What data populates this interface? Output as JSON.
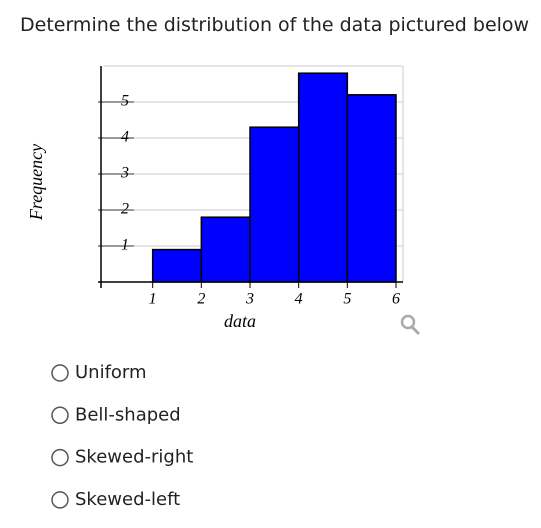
{
  "question": "Determine the distribution of the data pictured below",
  "chart_data": {
    "type": "histogram",
    "xlabel": "data",
    "ylabel": "Frequency",
    "bins": [
      1,
      2,
      3,
      4,
      5,
      6
    ],
    "values": [
      0.9,
      1.8,
      4.3,
      5.8,
      5.2
    ],
    "color": "#0000ff",
    "xlim": [
      0,
      6
    ],
    "ylim": [
      0,
      6
    ],
    "xticks": [
      1,
      2,
      3,
      4,
      5,
      6
    ],
    "yticks": [
      1,
      2,
      3,
      4,
      5
    ],
    "grid": true
  },
  "options": [
    "Uniform",
    "Bell-shaped",
    "Skewed-right",
    "Skewed-left"
  ]
}
